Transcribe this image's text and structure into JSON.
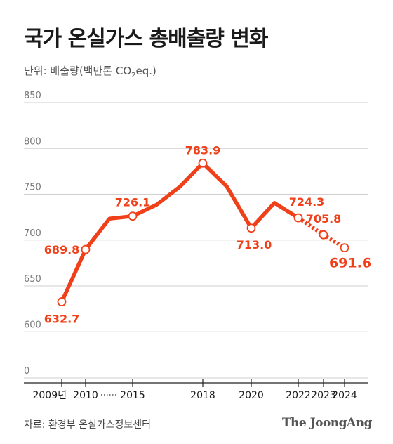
{
  "header": {
    "title": "국가 온실가스 총배출량 변화",
    "unit_prefix": "단위: 배출량(백만톤 CO",
    "unit_sub": "2",
    "unit_suffix": "eq.)"
  },
  "footer": {
    "source": "자료: 환경부 온실가스정보센터",
    "logo": "The JoongAng"
  },
  "colors": {
    "line": "#f0401a",
    "marker_fill": "#ffffff",
    "grid": "#cfcfcf"
  },
  "chart_data": {
    "type": "line",
    "title": "국가 온실가스 총배출량 변화",
    "ylabel": "",
    "xlabel": "",
    "y_ticks": [
      0,
      600,
      650,
      700,
      750,
      800,
      850
    ],
    "y_axis_break": "0 to 600",
    "x_axis_break_between": [
      "2010",
      "2015"
    ],
    "x_tick_labels": [
      "2009년",
      "2010",
      "2015",
      "2018",
      "2020",
      "2022",
      "2023",
      "2024"
    ],
    "grid": true,
    "series": [
      {
        "x": [
          2009,
          2010,
          2011,
          2015,
          2016,
          2017,
          2018,
          2019,
          2020,
          2021,
          2022,
          2023,
          2024
        ],
        "values": [
          632.7,
          689.8,
          723.4,
          726.1,
          738.5,
          758.0,
          783.9,
          758.6,
          713.0,
          740.5,
          724.3,
          705.8,
          691.6
        ],
        "solid_until": 2022,
        "dashed_from": 2022
      }
    ],
    "labels": [
      {
        "x": 2009,
        "text": "632.7",
        "marker": true
      },
      {
        "x": 2010,
        "text": "689.8",
        "marker": true
      },
      {
        "x": 2015,
        "text": "726.1",
        "marker": true
      },
      {
        "x": 2018,
        "text": "783.9",
        "marker": true
      },
      {
        "x": 2020,
        "text": "713.0",
        "marker": true
      },
      {
        "x": 2022,
        "text": "724.3",
        "marker": true
      },
      {
        "x": 2023,
        "text": "705.8",
        "marker": true
      },
      {
        "x": 2024,
        "text": "691.6",
        "marker": true,
        "emphasis": true
      }
    ]
  }
}
